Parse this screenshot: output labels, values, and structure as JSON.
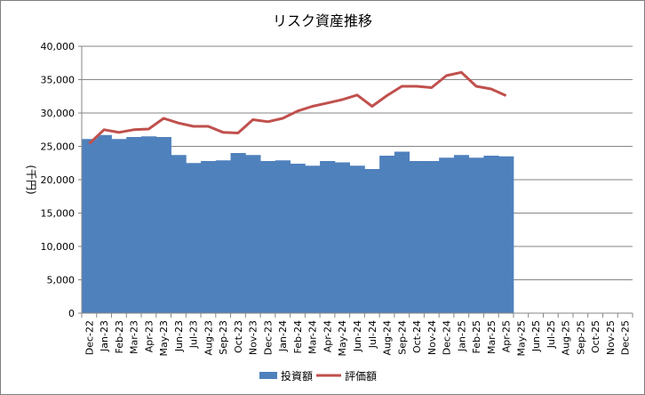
{
  "chart_data": {
    "type": "bar+line",
    "title": "リスク資産推移",
    "ylabel": "(千円)",
    "xlabel": "",
    "ylim": [
      0,
      40000
    ],
    "ytick_step": 5000,
    "grid": true,
    "legend_position": "bottom",
    "categories": [
      "Dec-22",
      "Jan-23",
      "Feb-23",
      "Mar-23",
      "Apr-23",
      "May-23",
      "Jun-23",
      "Jul-23",
      "Aug-23",
      "Sep-23",
      "Oct-23",
      "Nov-23",
      "Dec-23",
      "Jan-24",
      "Feb-24",
      "Mar-24",
      "Apr-24",
      "May-24",
      "Jun-24",
      "Jul-24",
      "Aug-24",
      "Sep-24",
      "Oct-24",
      "Nov-24",
      "Dec-24",
      "Jan-25",
      "Feb-25",
      "Mar-25",
      "Apr-25",
      "May-25",
      "Jun-25",
      "Jul-25",
      "Aug-25",
      "Sep-25",
      "Oct-25",
      "Nov-25",
      "Dec-25"
    ],
    "series": [
      {
        "name": "投資額",
        "kind": "bar",
        "color": "#4f81bd",
        "values": [
          26100,
          26700,
          26100,
          26400,
          26500,
          26400,
          23700,
          22500,
          22800,
          22900,
          24000,
          23700,
          22800,
          22900,
          22400,
          22100,
          22800,
          22600,
          22100,
          21600,
          23600,
          24200,
          22800,
          22800,
          23300,
          23700,
          23300,
          23600,
          23500,
          null,
          null,
          null,
          null,
          null,
          null,
          null,
          null
        ]
      },
      {
        "name": "評価額",
        "kind": "line",
        "color": "#c0504d",
        "values": [
          25400,
          27500,
          27100,
          27500,
          27600,
          29200,
          28500,
          28000,
          28000,
          27100,
          27000,
          29000,
          28700,
          29200,
          30300,
          31000,
          31500,
          32000,
          32700,
          31000,
          32600,
          34000,
          34000,
          33800,
          35600,
          36100,
          34000,
          33600,
          32600,
          null,
          null,
          null,
          null,
          null,
          null,
          null,
          null
        ]
      }
    ]
  }
}
